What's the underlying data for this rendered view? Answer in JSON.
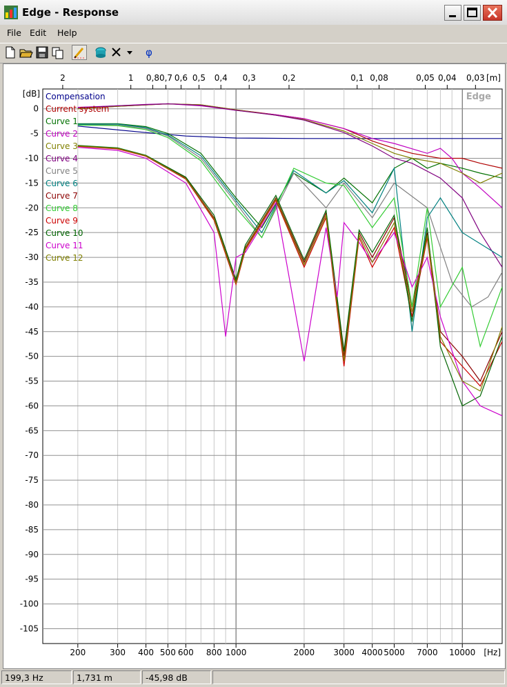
{
  "window": {
    "title": "Edge - Response"
  },
  "menu": {
    "items": [
      "File",
      "Edit",
      "Help"
    ]
  },
  "toolbar": {
    "buttons": [
      "new-file",
      "open-folder",
      "save",
      "copy",
      "draw-curve",
      "bucket",
      "delete-curve",
      "dropdown",
      "phase"
    ],
    "phase_label": "φ"
  },
  "chart_data": {
    "type": "line",
    "title": "",
    "watermark": "Edge",
    "xlabel": "[Hz]",
    "ylabel": "[dB]",
    "x_scale": "log",
    "xlim": [
      140,
      15000
    ],
    "ylim": [
      -108,
      4
    ],
    "grid": true,
    "x_ticks": [
      200,
      300,
      400,
      500,
      600,
      800,
      1000,
      2000,
      3000,
      4000,
      5000,
      7000,
      10000
    ],
    "y_ticks": [
      0,
      -5,
      -10,
      -15,
      -20,
      -25,
      -30,
      -35,
      -40,
      -45,
      -50,
      -55,
      -60,
      -65,
      -70,
      -75,
      -80,
      -85,
      -90,
      -95,
      -100,
      -105
    ],
    "top_axis": {
      "label": "[m]",
      "ticks": [
        "2",
        "1",
        "0,8",
        "0,7",
        "0,6",
        "0,5",
        "0,4",
        "0,3",
        "0,2",
        "0,1",
        "0,08",
        "0,05",
        "0,04",
        "0,03"
      ]
    },
    "legend_placement": "top-left",
    "series": [
      {
        "name": "Compensation",
        "color": "#00008b",
        "x": [
          200,
          400,
          600,
          1000,
          2000,
          4000,
          7000,
          10000,
          15000
        ],
        "y": [
          -3.5,
          -4.8,
          -5.5,
          -5.9,
          -6.0,
          -6.0,
          -6.0,
          -6.0,
          -6.0
        ]
      },
      {
        "name": "Current system",
        "color": "#b00000",
        "x": [
          200,
          300,
          500,
          700,
          1000,
          1500,
          2000,
          3000,
          4000,
          5000,
          6000,
          8000,
          10000,
          12000,
          15000
        ],
        "y": [
          0,
          0.5,
          1,
          0.8,
          -0.2,
          -1.2,
          -2,
          -4,
          -6.5,
          -8,
          -9,
          -10,
          -10,
          -11,
          -12
        ]
      },
      {
        "name": "Curve 1",
        "color": "#007000",
        "x": [
          200,
          300,
          400,
          500,
          700,
          1000,
          1300,
          1800,
          2500,
          3000,
          4000,
          5000,
          6000,
          7000,
          8000,
          10000,
          12000,
          15000
        ],
        "y": [
          -3,
          -3,
          -3.6,
          -5,
          -9,
          -18,
          -24,
          -13,
          -17,
          -14,
          -19,
          -12,
          -10,
          -12,
          -11,
          -12,
          -13,
          -14
        ]
      },
      {
        "name": "Curve 2",
        "color": "#c000c0",
        "x": [
          200,
          300,
          400,
          500,
          700,
          1000,
          1500,
          2000,
          3000,
          4000,
          5000,
          7000,
          8000,
          9000,
          10000,
          12000,
          15000
        ],
        "y": [
          0.3,
          0.6,
          0.9,
          1,
          0.6,
          -0.3,
          -1.2,
          -2,
          -4,
          -6,
          -7,
          -9,
          -8,
          -10,
          -13,
          -16,
          -20
        ]
      },
      {
        "name": "Curve 3",
        "color": "#808000",
        "x": [
          200,
          300,
          500,
          700,
          1000,
          1500,
          2000,
          3000,
          4000,
          5000,
          6000,
          8000,
          10000,
          12000,
          15000
        ],
        "y": [
          0,
          0.5,
          1,
          0.8,
          -0.2,
          -1.3,
          -2.2,
          -4.5,
          -7,
          -9,
          -10,
          -11,
          -13,
          -15,
          -13
        ]
      },
      {
        "name": "Curve 4",
        "color": "#800080",
        "x": [
          200,
          300,
          500,
          700,
          1000,
          1500,
          2000,
          3000,
          4000,
          5000,
          6000,
          8000,
          10000,
          12000,
          15000
        ],
        "y": [
          0.2,
          0.6,
          1,
          0.7,
          -0.3,
          -1.3,
          -2.3,
          -4.8,
          -7.5,
          -10,
          -11,
          -14,
          -18,
          -25,
          -32
        ]
      },
      {
        "name": "Curve 5",
        "color": "#808080",
        "x": [
          200,
          300,
          400,
          500,
          700,
          1000,
          1300,
          1800,
          2500,
          3000,
          4000,
          5000,
          7000,
          9000,
          11000,
          13000,
          15000
        ],
        "y": [
          -3.2,
          -3.3,
          -4,
          -5.5,
          -10,
          -19,
          -26,
          -13,
          -20,
          -15,
          -22,
          -15,
          -20,
          -35,
          -40,
          -38,
          -33
        ]
      },
      {
        "name": "Curve 6",
        "color": "#008080",
        "x": [
          200,
          300,
          400,
          500,
          700,
          1000,
          1300,
          1800,
          2500,
          3000,
          4000,
          5000,
          6000,
          7000,
          8000,
          10000,
          15000
        ],
        "y": [
          -3.1,
          -3.1,
          -3.8,
          -5.3,
          -9.5,
          -18.5,
          -25,
          -12.5,
          -17,
          -14.5,
          -21,
          -12,
          -45,
          -22,
          -18,
          -25,
          -30
        ]
      },
      {
        "name": "Curve 7",
        "color": "#8b0000",
        "x": [
          200,
          300,
          400,
          600,
          800,
          1000,
          1100,
          1500,
          2000,
          2500,
          3000,
          3500,
          4000,
          5000,
          6000,
          7000,
          8000,
          10000,
          12000,
          15000
        ],
        "y": [
          -7.5,
          -8,
          -9.5,
          -14,
          -22,
          -35,
          -28,
          -18,
          -31,
          -21,
          -50,
          -25,
          -30,
          -22,
          -40,
          -25,
          -45,
          -50,
          -55,
          -45
        ]
      },
      {
        "name": "Curve 8",
        "color": "#33cc33",
        "x": [
          200,
          300,
          400,
          500,
          700,
          1000,
          1300,
          1800,
          2500,
          3000,
          4000,
          5000,
          6000,
          7000,
          8000,
          10000,
          12000,
          15000
        ],
        "y": [
          -3.3,
          -3.4,
          -4.2,
          -5.8,
          -10.5,
          -20,
          -26,
          -12,
          -15,
          -15.5,
          -24,
          -18,
          -40,
          -20,
          -40,
          -32,
          -48,
          -36
        ]
      },
      {
        "name": "Curve 9",
        "color": "#cc0000",
        "x": [
          200,
          300,
          400,
          600,
          800,
          1000,
          1100,
          1500,
          2000,
          2500,
          3000,
          3500,
          4000,
          5000,
          6000,
          7000,
          8000,
          10000,
          12000,
          15000
        ],
        "y": [
          -7.6,
          -8.1,
          -9.6,
          -14.2,
          -22.5,
          -35.5,
          -28.5,
          -18.5,
          -32,
          -22,
          -52,
          -26,
          -32,
          -24,
          -42,
          -26,
          -47,
          -52,
          -56,
          -47
        ]
      },
      {
        "name": "Curve 10",
        "color": "#006400",
        "x": [
          200,
          300,
          400,
          600,
          800,
          1000,
          1100,
          1500,
          2000,
          2500,
          3000,
          3500,
          4000,
          5000,
          6000,
          7000,
          8000,
          10000,
          12000,
          15000
        ],
        "y": [
          -7.4,
          -7.9,
          -9.4,
          -13.8,
          -21.5,
          -34.5,
          -27.5,
          -17.5,
          -30.5,
          -20.5,
          -49,
          -24.5,
          -29,
          -21.5,
          -43,
          -24,
          -48,
          -60,
          -58,
          -46
        ]
      },
      {
        "name": "Curve 11",
        "color": "#cc00cc",
        "x": [
          200,
          300,
          400,
          600,
          800,
          900,
          1000,
          1100,
          1500,
          2000,
          2500,
          2800,
          3000,
          3500,
          4000,
          5000,
          6000,
          7000,
          8000,
          10000,
          12000,
          15000
        ],
        "y": [
          -7.8,
          -8.4,
          -10,
          -15,
          -25,
          -46,
          -30,
          -29,
          -19,
          -51,
          -24,
          -38,
          -23,
          -27,
          -31,
          -25,
          -36,
          -30,
          -42,
          -55,
          -60,
          -62
        ]
      },
      {
        "name": "Curve 12",
        "color": "#808000",
        "x": [
          200,
          300,
          400,
          600,
          800,
          1000,
          1100,
          1500,
          2000,
          2500,
          3000,
          3500,
          4000,
          5000,
          6000,
          7000,
          8000,
          10000,
          12000,
          15000
        ],
        "y": [
          -7.5,
          -8.0,
          -9.5,
          -14.1,
          -22.2,
          -35.2,
          -28.2,
          -18.2,
          -31.5,
          -21.5,
          -51,
          -25.5,
          -31,
          -23,
          -41,
          -25.5,
          -46,
          -55,
          -57,
          -44
        ]
      }
    ]
  },
  "status": {
    "frequency": "199,3 Hz",
    "distance": "1,731 m",
    "level": "-45,98 dB"
  }
}
